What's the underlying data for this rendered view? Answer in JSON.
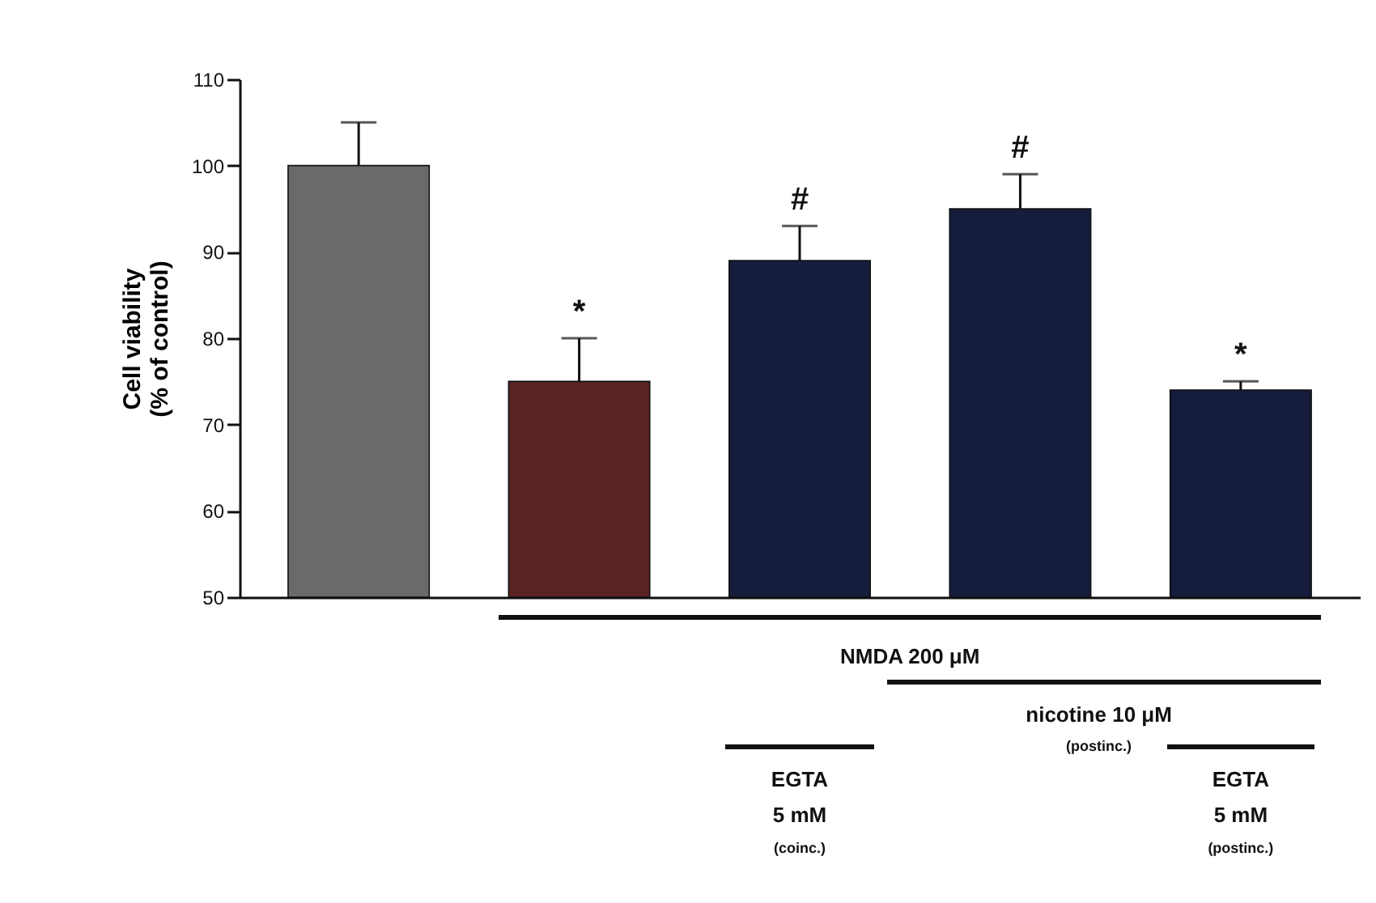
{
  "chart_data": {
    "type": "bar",
    "ylabel": "Cell viability (% of control)",
    "categories": [
      null,
      null,
      null,
      null,
      null
    ],
    "values": [
      100,
      75,
      89,
      95,
      74
    ],
    "colors": [
      "#6a6a6a",
      "#5a2424",
      "#151c3c",
      "#151c3c",
      "#151c3c"
    ],
    "errors": [
      [
        100,
        105
      ],
      [
        75,
        80
      ],
      [
        89,
        93
      ],
      [
        95,
        99
      ],
      [
        74,
        75
      ]
    ],
    "value_labels": [
      null,
      "*",
      "#",
      "#",
      "*"
    ],
    "ylim": [
      50,
      110
    ],
    "yticks": [
      50,
      60,
      70,
      80,
      90,
      100,
      110
    ],
    "tick_labels": "y",
    "grid": false,
    "annotations": [
      "NMDA 200 μM",
      "nicotine 10 μM",
      "(postinc.)",
      "EGTA",
      "5 mM",
      "(coinc.)",
      "EGTA",
      "5 mM",
      "(postinc.)"
    ]
  }
}
